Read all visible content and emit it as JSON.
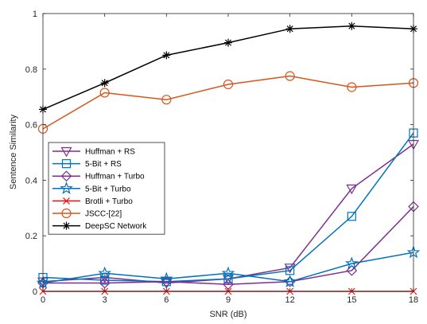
{
  "chart_data": {
    "type": "line",
    "xlabel": "SNR (dB)",
    "ylabel": "Sentence Similarity",
    "x": [
      0,
      3,
      6,
      9,
      12,
      15,
      18
    ],
    "xticks": [
      "0",
      "3",
      "6",
      "9",
      "12",
      "15",
      "18"
    ],
    "yticks": [
      "0",
      "0.2",
      "0.4",
      "0.6",
      "0.8",
      "1"
    ],
    "xlim": [
      0,
      18
    ],
    "ylim": [
      0,
      1
    ],
    "grid": false,
    "legend_position": "center-left",
    "series": [
      {
        "name": "Huffman + RS",
        "color": "#7E2F8E",
        "marker": "triangle-down",
        "values": [
          0.035,
          0.05,
          0.03,
          0.045,
          0.085,
          0.37,
          0.53
        ]
      },
      {
        "name": "5-Bit + RS",
        "color": "#0072BD",
        "marker": "square",
        "values": [
          0.05,
          0.04,
          0.035,
          0.045,
          0.075,
          0.27,
          0.57
        ]
      },
      {
        "name": "Huffman + Turbo",
        "color": "#7E2F8E",
        "marker": "diamond",
        "values": [
          0.03,
          0.03,
          0.035,
          0.025,
          0.035,
          0.075,
          0.305
        ]
      },
      {
        "name": "5-Bit + Turbo",
        "color": "#0072BD",
        "marker": "star",
        "values": [
          0.03,
          0.065,
          0.045,
          0.065,
          0.035,
          0.1,
          0.14
        ]
      },
      {
        "name": "Brotli + Turbo",
        "color": "#EE1111",
        "marker": "x",
        "values": [
          0,
          0,
          0,
          0,
          0,
          0,
          0
        ]
      },
      {
        "name": "JSCC-[22]",
        "color": "#D95319",
        "marker": "circle",
        "values": [
          0.585,
          0.715,
          0.69,
          0.745,
          0.775,
          0.735,
          0.75
        ]
      },
      {
        "name": "DeepSC Network",
        "color": "#000000",
        "marker": "asterisk",
        "values": [
          0.655,
          0.75,
          0.85,
          0.895,
          0.945,
          0.955,
          0.945
        ]
      }
    ]
  }
}
